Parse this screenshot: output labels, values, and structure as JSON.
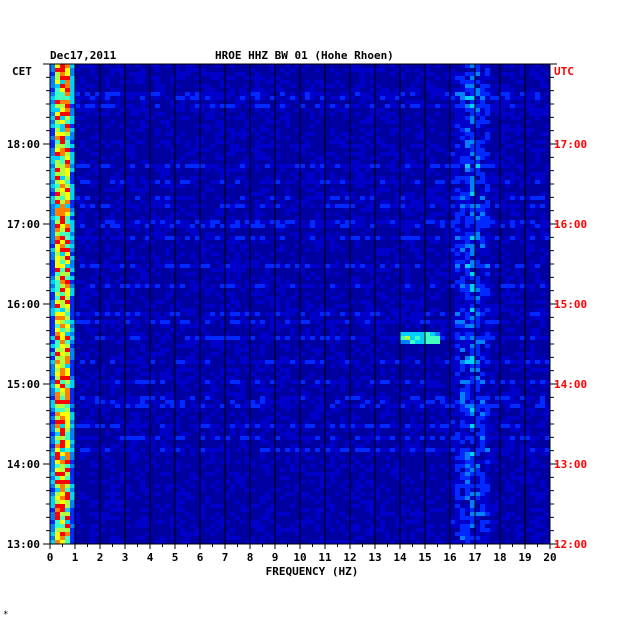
{
  "chart_data": {
    "type": "heatmap",
    "header_date": "Dec17,2011",
    "title": "HROE HHZ BW 01 (Hohe Rhoen)",
    "left_axis_label": "CET",
    "right_axis_label": "UTC",
    "xlabel": "FREQUENCY (HZ)",
    "xlim": [
      0,
      20
    ],
    "x_ticks": [
      "0",
      "1",
      "2",
      "3",
      "4",
      "5",
      "6",
      "7",
      "8",
      "9",
      "10",
      "11",
      "12",
      "13",
      "14",
      "15",
      "16",
      "17",
      "18",
      "19",
      "20"
    ],
    "left_y_ticks": [
      "18:00",
      "17:00",
      "16:00",
      "15:00",
      "14:00",
      "13:00"
    ],
    "right_y_ticks": [
      "UTC",
      "17:00",
      "16:00",
      "15:00",
      "14:00",
      "13:00",
      "12:00"
    ],
    "time_range_cet": [
      "13:00",
      "19:00"
    ],
    "grid": "vertical lines every 1 Hz",
    "colors": {
      "background": "#0000a0",
      "grid": "#000000",
      "utc_text": "#ff0000",
      "text": "#000000"
    },
    "colormap": [
      "#00008c",
      "#0000c8",
      "#0028ff",
      "#0080ff",
      "#00d0ff",
      "#40ffc0",
      "#b0ff40",
      "#ffff00",
      "#ff8000",
      "#ff0000"
    ],
    "features": [
      {
        "name": "microseism band",
        "freq_range_hz": [
          0.2,
          0.8
        ],
        "intensity": "high"
      },
      {
        "name": "tonal line",
        "freq_hz": 17.0,
        "intensity": "medium"
      },
      {
        "name": "burst",
        "time_cet": "15:35",
        "freq_range_hz": [
          14,
          15.6
        ],
        "intensity": "medium"
      }
    ]
  },
  "footer_mark": "*"
}
